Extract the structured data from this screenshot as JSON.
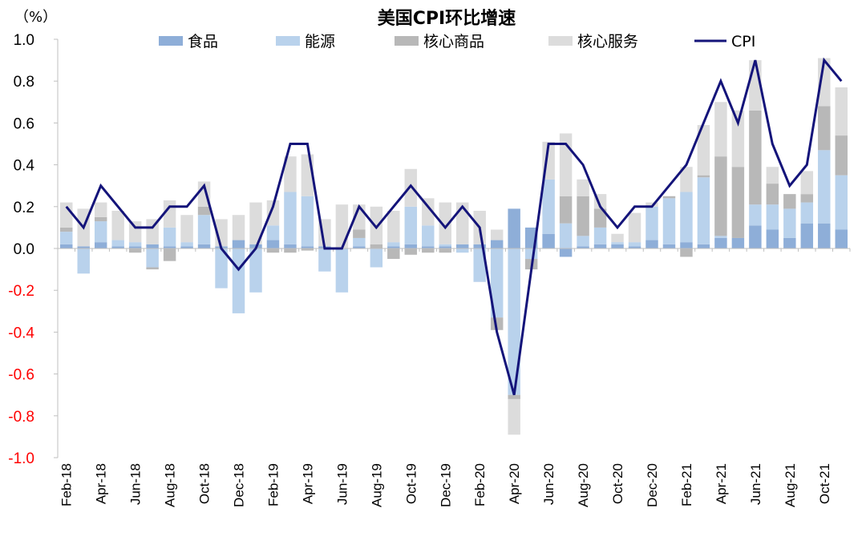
{
  "chart_data": {
    "type": "bar",
    "title": "美国CPI环比增速",
    "unit_label": "（%）",
    "ylim": [
      -1.0,
      1.0
    ],
    "yticks": [
      "1.0",
      "0.8",
      "0.6",
      "0.4",
      "0.2",
      "0.0",
      "-0.2",
      "-0.4",
      "-0.6",
      "-0.8",
      "-1.0"
    ],
    "ytick_values": [
      1.0,
      0.8,
      0.6,
      0.4,
      0.2,
      0.0,
      -0.2,
      -0.4,
      -0.6,
      -0.8,
      -1.0
    ],
    "ytick_colors": [
      "#000000",
      "#000000",
      "#000000",
      "#000000",
      "#000000",
      "#000000",
      "#ff0000",
      "#ff0000",
      "#ff0000",
      "#ff0000",
      "#ff0000"
    ],
    "stacked": true,
    "categories": [
      "Feb-18",
      "Mar-18",
      "Apr-18",
      "May-18",
      "Jun-18",
      "Jul-18",
      "Aug-18",
      "Sep-18",
      "Oct-18",
      "Nov-18",
      "Dec-18",
      "Jan-19",
      "Feb-19",
      "Mar-19",
      "Apr-19",
      "May-19",
      "Jun-19",
      "Jul-19",
      "Aug-19",
      "Sep-19",
      "Oct-19",
      "Nov-19",
      "Dec-19",
      "Jan-20",
      "Feb-20",
      "Mar-20",
      "Apr-20",
      "May-20",
      "Jun-20",
      "Jul-20",
      "Aug-20",
      "Sep-20",
      "Oct-20",
      "Nov-20",
      "Dec-20",
      "Jan-21",
      "Feb-21",
      "Mar-21",
      "Apr-21",
      "May-21",
      "Jun-21",
      "Jul-21",
      "Aug-21",
      "Sep-21",
      "Oct-21",
      "Nov-21"
    ],
    "x_tick_labels": [
      "Feb-18",
      "",
      "Apr-18",
      "",
      "Jun-18",
      "",
      "Aug-18",
      "",
      "Oct-18",
      "",
      "Dec-18",
      "",
      "Feb-19",
      "",
      "Apr-19",
      "",
      "Jun-19",
      "",
      "Aug-19",
      "",
      "Oct-19",
      "",
      "Dec-19",
      "",
      "Feb-20",
      "",
      "Apr-20",
      "",
      "Jun-20",
      "",
      "Aug-20",
      "",
      "Oct-20",
      "",
      "Dec-20",
      "",
      "Feb-21",
      "",
      "Apr-21",
      "",
      "Jun-21",
      "",
      "Aug-21",
      "",
      "Oct-21",
      ""
    ],
    "series": [
      {
        "name": "食品",
        "color": "#8eaed8",
        "kind": "bar",
        "values": [
          0.02,
          0.01,
          0.03,
          0.01,
          0.01,
          0.02,
          0.01,
          0.01,
          0.02,
          0.01,
          0.04,
          0.02,
          0.04,
          0.02,
          0.01,
          0.01,
          0.0,
          0.01,
          0.0,
          0.01,
          0.02,
          0.01,
          0.01,
          0.02,
          0.02,
          0.04,
          0.19,
          0.1,
          0.07,
          -0.04,
          0.01,
          0.02,
          0.02,
          0.01,
          0.04,
          0.02,
          0.03,
          0.02,
          0.05,
          0.05,
          0.11,
          0.09,
          0.05,
          0.12,
          0.12,
          0.09
        ]
      },
      {
        "name": "能源",
        "color": "#b9d2ec",
        "kind": "bar",
        "values": [
          0.06,
          -0.12,
          0.1,
          0.03,
          0.02,
          -0.09,
          0.09,
          0.02,
          0.14,
          -0.19,
          -0.31,
          -0.21,
          0.07,
          0.25,
          0.24,
          -0.11,
          -0.21,
          0.04,
          -0.09,
          0.02,
          0.18,
          0.1,
          0.01,
          -0.02,
          -0.16,
          -0.33,
          -0.7,
          -0.05,
          0.26,
          0.12,
          0.05,
          0.08,
          0.01,
          0.02,
          0.16,
          0.22,
          0.24,
          0.32,
          0.01,
          0.0,
          0.1,
          0.12,
          0.14,
          0.1,
          0.35,
          0.26
        ]
      },
      {
        "name": "核心商品",
        "color": "#b8b8b8",
        "kind": "bar",
        "values": [
          0.02,
          0.0,
          0.02,
          0.0,
          -0.02,
          -0.01,
          -0.06,
          0.0,
          0.04,
          0.0,
          0.0,
          0.0,
          -0.02,
          -0.02,
          -0.01,
          0.0,
          0.0,
          0.04,
          0.02,
          -0.05,
          -0.03,
          -0.02,
          -0.02,
          0.0,
          0.0,
          -0.06,
          -0.02,
          -0.05,
          0.0,
          0.13,
          0.19,
          0.09,
          0.0,
          0.0,
          0.0,
          0.01,
          -0.04,
          0.01,
          0.38,
          0.34,
          0.45,
          0.1,
          0.07,
          0.04,
          0.21,
          0.19
        ]
      },
      {
        "name": "核心服务",
        "color": "#dcdcdc",
        "kind": "bar",
        "values": [
          0.12,
          0.18,
          0.07,
          0.14,
          0.1,
          0.12,
          0.13,
          0.13,
          0.12,
          0.13,
          0.12,
          0.2,
          0.12,
          0.17,
          0.2,
          0.13,
          0.21,
          0.12,
          0.18,
          0.15,
          0.18,
          0.13,
          0.2,
          0.2,
          0.16,
          0.05,
          -0.17,
          0.0,
          0.18,
          0.3,
          0.08,
          0.07,
          0.04,
          0.14,
          0.02,
          0.0,
          0.12,
          0.24,
          0.26,
          0.27,
          0.24,
          0.08,
          0.0,
          0.11,
          0.23,
          0.23
        ]
      },
      {
        "name": "CPI",
        "color": "#14147a",
        "kind": "line",
        "values": [
          0.2,
          0.1,
          0.3,
          0.2,
          0.1,
          0.1,
          0.2,
          0.2,
          0.3,
          0.0,
          -0.1,
          0.0,
          0.2,
          0.5,
          0.5,
          0.0,
          0.0,
          0.2,
          0.1,
          0.2,
          0.3,
          0.2,
          0.1,
          0.2,
          0.1,
          -0.4,
          -0.7,
          -0.1,
          0.5,
          0.5,
          0.4,
          0.2,
          0.1,
          0.2,
          0.2,
          0.3,
          0.4,
          0.6,
          0.8,
          0.6,
          0.9,
          0.5,
          0.3,
          0.4,
          0.9,
          0.8
        ]
      }
    ],
    "legend_position": "top",
    "grid": false
  }
}
